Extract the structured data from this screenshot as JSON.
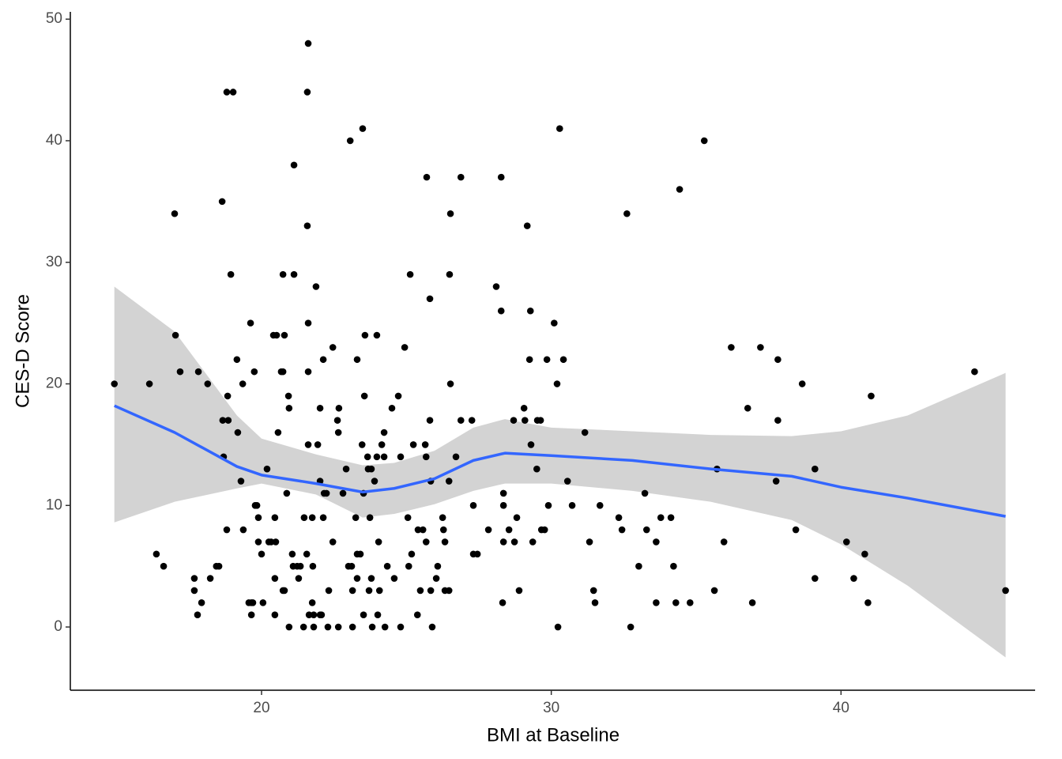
{
  "chart_data": {
    "type": "scatter",
    "xlabel": "BMI at Baseline",
    "ylabel": "CES-D Score",
    "xlim": [
      13.4,
      46.7
    ],
    "ylim": [
      -5.2,
      50.6
    ],
    "xticks": [
      20,
      30,
      40
    ],
    "yticks": [
      0,
      10,
      20,
      30,
      40,
      50
    ],
    "grid": false,
    "color": "#000000",
    "x": [
      14.92,
      16.13,
      16.37,
      16.62,
      17.0,
      17.03,
      17.19,
      17.68,
      17.68,
      17.79,
      17.93,
      17.82,
      18.14,
      18.23,
      18.44,
      18.53,
      18.64,
      18.66,
      18.69,
      18.8,
      18.83,
      18.85,
      18.8,
      18.94,
      19.02,
      19.18,
      19.15,
      19.29,
      19.35,
      19.37,
      19.62,
      19.56,
      19.65,
      19.65,
      19.7,
      19.75,
      19.78,
      19.84,
      19.89,
      19.89,
      20.0,
      20.05,
      20.19,
      20.25,
      20.33,
      20.41,
      20.46,
      20.49,
      20.46,
      20.46,
      20.57,
      20.52,
      20.68,
      20.74,
      20.79,
      20.74,
      20.74,
      20.79,
      20.87,
      20.93,
      20.95,
      20.95,
      21.06,
      21.12,
      21.12,
      21.09,
      21.23,
      21.28,
      21.34,
      21.45,
      21.47,
      21.58,
      21.61,
      21.58,
      21.61,
      21.61,
      21.61,
      21.56,
      21.64,
      21.75,
      21.75,
      21.77,
      21.8,
      21.8,
      21.88,
      21.94,
      22.02,
      22.02,
      22.07,
      22.02,
      22.13,
      22.13,
      22.16,
      22.24,
      22.29,
      22.32,
      22.46,
      22.46,
      22.62,
      22.65,
      22.65,
      22.67,
      22.81,
      22.92,
      23.06,
      23.0,
      23.11,
      23.14,
      23.14,
      23.3,
      23.25,
      23.3,
      23.3,
      23.41,
      23.47,
      23.49,
      23.55,
      23.57,
      23.52,
      23.52,
      23.66,
      23.68,
      23.74,
      23.71,
      23.79,
      23.79,
      23.82,
      23.9,
      23.98,
      23.98,
      24.01,
      24.04,
      24.07,
      24.15,
      24.23,
      24.23,
      24.26,
      24.34,
      24.5,
      24.58,
      24.72,
      24.8,
      24.8,
      24.94,
      25.05,
      25.08,
      25.13,
      25.24,
      25.18,
      25.4,
      25.38,
      25.48,
      25.57,
      25.65,
      25.68,
      25.68,
      25.7,
      25.81,
      25.81,
      25.84,
      25.89,
      25.84,
      26.03,
      26.08,
      26.25,
      26.28,
      26.33,
      26.33,
      26.47,
      26.47,
      26.49,
      26.52,
      26.52,
      26.71,
      26.88,
      26.88,
      27.26,
      27.31,
      27.31,
      27.45,
      27.83,
      28.1,
      28.27,
      28.27,
      28.35,
      28.35,
      28.35,
      28.32,
      28.54,
      28.7,
      28.73,
      28.81,
      28.89,
      29.06,
      29.09,
      29.17,
      29.3,
      29.25,
      29.28,
      29.36,
      29.5,
      29.52,
      29.63,
      29.66,
      29.77,
      29.85,
      29.9,
      30.1,
      30.2,
      30.23,
      30.29,
      30.42,
      30.56,
      30.72,
      31.16,
      31.32,
      31.46,
      31.51,
      31.68,
      32.33,
      32.44,
      32.61,
      32.74,
      33.02,
      33.23,
      33.29,
      33.62,
      33.62,
      33.78,
      34.13,
      34.22,
      34.3,
      34.43,
      34.79,
      35.28,
      35.63,
      35.72,
      35.96,
      36.21,
      36.78,
      36.94,
      37.22,
      37.76,
      37.82,
      37.82,
      38.44,
      38.66,
      39.1,
      39.1,
      40.19,
      40.44,
      40.82,
      40.93,
      41.04,
      44.61,
      45.68
    ],
    "y": [
      20,
      20,
      6,
      5,
      34,
      24,
      21,
      4,
      3,
      1,
      2,
      21,
      20,
      4,
      5,
      5,
      35,
      17,
      14,
      44,
      19,
      17,
      8,
      29,
      44,
      16,
      22,
      12,
      20,
      8,
      25,
      2,
      2,
      1,
      2,
      21,
      10,
      10,
      9,
      7,
      6,
      2,
      13,
      7,
      7,
      24,
      9,
      7,
      1,
      4,
      16,
      24,
      21,
      21,
      24,
      29,
      3,
      3,
      11,
      19,
      18,
      0,
      6,
      38,
      29,
      5,
      5,
      4,
      5,
      0,
      9,
      33,
      48,
      44,
      25,
      21,
      15,
      6,
      1,
      9,
      2,
      5,
      0,
      1,
      28,
      15,
      12,
      1,
      1,
      18,
      22,
      9,
      11,
      11,
      0,
      3,
      23,
      7,
      17,
      16,
      0,
      18,
      11,
      13,
      40,
      5,
      5,
      3,
      0,
      22,
      9,
      6,
      4,
      6,
      15,
      41,
      19,
      24,
      11,
      1,
      14,
      13,
      9,
      3,
      13,
      4,
      0,
      12,
      24,
      14,
      1,
      7,
      3,
      15,
      16,
      14,
      0,
      5,
      18,
      4,
      19,
      14,
      0,
      23,
      9,
      5,
      29,
      15,
      6,
      8,
      1,
      3,
      8,
      15,
      14,
      7,
      37,
      27,
      17,
      12,
      0,
      3,
      4,
      5,
      9,
      8,
      7,
      3,
      3,
      12,
      29,
      34,
      20,
      14,
      37,
      17,
      17,
      6,
      10,
      6,
      8,
      28,
      26,
      37,
      10,
      11,
      7,
      2,
      8,
      17,
      7,
      9,
      3,
      18,
      17,
      33,
      15,
      22,
      26,
      7,
      13,
      17,
      17,
      8,
      8,
      22,
      10,
      25,
      20,
      0,
      41,
      22,
      12,
      10,
      16,
      7,
      3,
      2,
      10,
      9,
      8,
      34,
      0,
      5,
      11,
      8,
      7,
      2,
      9,
      9,
      5,
      2,
      36,
      2,
      40,
      3,
      13,
      7,
      23,
      18,
      2,
      23,
      12,
      22,
      17,
      8,
      20,
      13,
      4,
      7,
      4,
      6,
      2,
      19,
      21,
      3
    ],
    "smooth": {
      "color": "#3366ff",
      "band_color": "#d3d3d3",
      "x": [
        14.92,
        17.0,
        19.15,
        20.0,
        21.88,
        23.49,
        24.58,
        25.97,
        27.31,
        28.4,
        30.0,
        32.8,
        35.5,
        38.3,
        40.0,
        42.3,
        45.68
      ],
      "y": [
        18.2,
        16.0,
        13.2,
        12.5,
        11.8,
        11.1,
        11.4,
        12.2,
        13.7,
        14.3,
        14.1,
        13.7,
        13.0,
        12.4,
        11.5,
        10.6,
        9.1
      ],
      "lower": [
        8.6,
        10.3,
        11.4,
        11.8,
        10.9,
        9.0,
        9.3,
        10.1,
        11.2,
        11.8,
        11.8,
        11.2,
        10.3,
        8.8,
        6.8,
        3.4,
        -2.5
      ],
      "upper": [
        28,
        24.3,
        17.4,
        15.5,
        14.2,
        13.3,
        13.5,
        14.5,
        16.4,
        17.1,
        16.4,
        16.1,
        15.8,
        15.7,
        16.1,
        17.4,
        20.9
      ]
    }
  }
}
